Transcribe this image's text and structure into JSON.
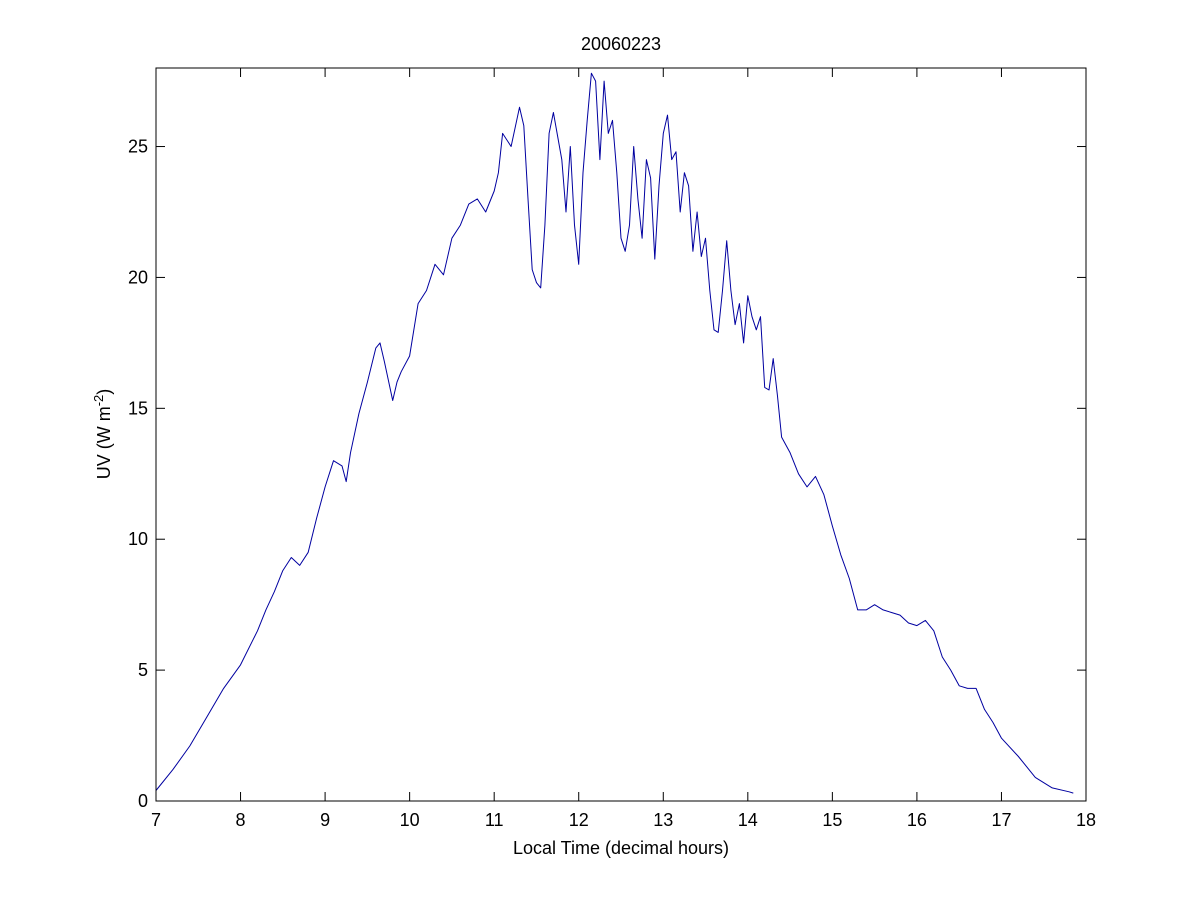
{
  "chart_data": {
    "type": "line",
    "title": "20060223",
    "xlabel": "Local Time (decimal hours)",
    "ylabel": {
      "main": "UV (W m",
      "superscript": "-2",
      "close": ")"
    },
    "xlim": [
      7,
      18
    ],
    "ylim": [
      0,
      28
    ],
    "x_ticks": [
      7,
      8,
      9,
      10,
      11,
      12,
      13,
      14,
      15,
      16,
      17,
      18
    ],
    "y_ticks": [
      0,
      5,
      10,
      15,
      20,
      25
    ],
    "grid": false,
    "series": [
      {
        "color": "#0000a0",
        "x": [
          7.0,
          7.2,
          7.4,
          7.6,
          7.8,
          8.0,
          8.2,
          8.3,
          8.4,
          8.5,
          8.6,
          8.7,
          8.8,
          8.9,
          9.0,
          9.1,
          9.2,
          9.25,
          9.3,
          9.4,
          9.5,
          9.6,
          9.65,
          9.7,
          9.8,
          9.85,
          9.9,
          10.0,
          10.1,
          10.2,
          10.3,
          10.4,
          10.5,
          10.6,
          10.7,
          10.8,
          10.9,
          11.0,
          11.05,
          11.1,
          11.2,
          11.3,
          11.35,
          11.4,
          11.45,
          11.5,
          11.55,
          11.6,
          11.65,
          11.7,
          11.75,
          11.8,
          11.85,
          11.9,
          11.95,
          12.0,
          12.05,
          12.1,
          12.15,
          12.2,
          12.25,
          12.3,
          12.35,
          12.4,
          12.45,
          12.5,
          12.55,
          12.6,
          12.65,
          12.7,
          12.75,
          12.8,
          12.85,
          12.9,
          12.95,
          13.0,
          13.05,
          13.1,
          13.15,
          13.2,
          13.25,
          13.3,
          13.35,
          13.4,
          13.45,
          13.5,
          13.55,
          13.6,
          13.65,
          13.7,
          13.75,
          13.8,
          13.85,
          13.9,
          13.95,
          14.0,
          14.05,
          14.1,
          14.15,
          14.2,
          14.25,
          14.3,
          14.35,
          14.4,
          14.5,
          14.6,
          14.7,
          14.8,
          14.9,
          15.0,
          15.1,
          15.2,
          15.3,
          15.4,
          15.5,
          15.6,
          15.7,
          15.8,
          15.9,
          16.0,
          16.1,
          16.2,
          16.3,
          16.4,
          16.5,
          16.6,
          16.7,
          16.8,
          16.9,
          17.0,
          17.2,
          17.4,
          17.6,
          17.8,
          17.85
        ],
        "y": [
          0.4,
          1.2,
          2.1,
          3.2,
          4.3,
          5.2,
          6.5,
          7.3,
          8.0,
          8.8,
          9.3,
          9.0,
          9.5,
          10.8,
          12.0,
          13.0,
          12.8,
          12.2,
          13.3,
          14.8,
          16.0,
          17.3,
          17.5,
          16.8,
          15.3,
          16.0,
          16.4,
          17.0,
          19.0,
          19.5,
          20.5,
          20.1,
          21.5,
          22.0,
          22.8,
          23.0,
          22.5,
          23.3,
          24.0,
          25.5,
          25.0,
          26.5,
          25.8,
          23.0,
          20.3,
          19.8,
          19.6,
          22.0,
          25.5,
          26.3,
          25.4,
          24.5,
          22.5,
          25.0,
          22.0,
          20.5,
          24.0,
          26.0,
          27.8,
          27.5,
          24.5,
          27.5,
          25.5,
          26.0,
          24.0,
          21.5,
          21.0,
          22.0,
          25.0,
          23.0,
          21.5,
          24.5,
          23.8,
          20.7,
          23.5,
          25.5,
          26.2,
          24.5,
          24.8,
          22.5,
          24.0,
          23.5,
          21.0,
          22.5,
          20.8,
          21.5,
          19.5,
          18.0,
          17.9,
          19.5,
          21.4,
          19.5,
          18.2,
          19.0,
          17.5,
          19.3,
          18.5,
          18.0,
          18.5,
          15.8,
          15.7,
          16.9,
          15.5,
          13.9,
          13.3,
          12.5,
          12.0,
          12.4,
          11.7,
          10.5,
          9.4,
          8.5,
          7.3,
          7.3,
          7.5,
          7.3,
          7.2,
          7.1,
          6.8,
          6.7,
          6.9,
          6.5,
          5.5,
          5.0,
          4.4,
          4.3,
          4.3,
          3.5,
          3.0,
          2.4,
          1.7,
          0.9,
          0.5,
          0.35,
          0.3
        ]
      }
    ]
  }
}
